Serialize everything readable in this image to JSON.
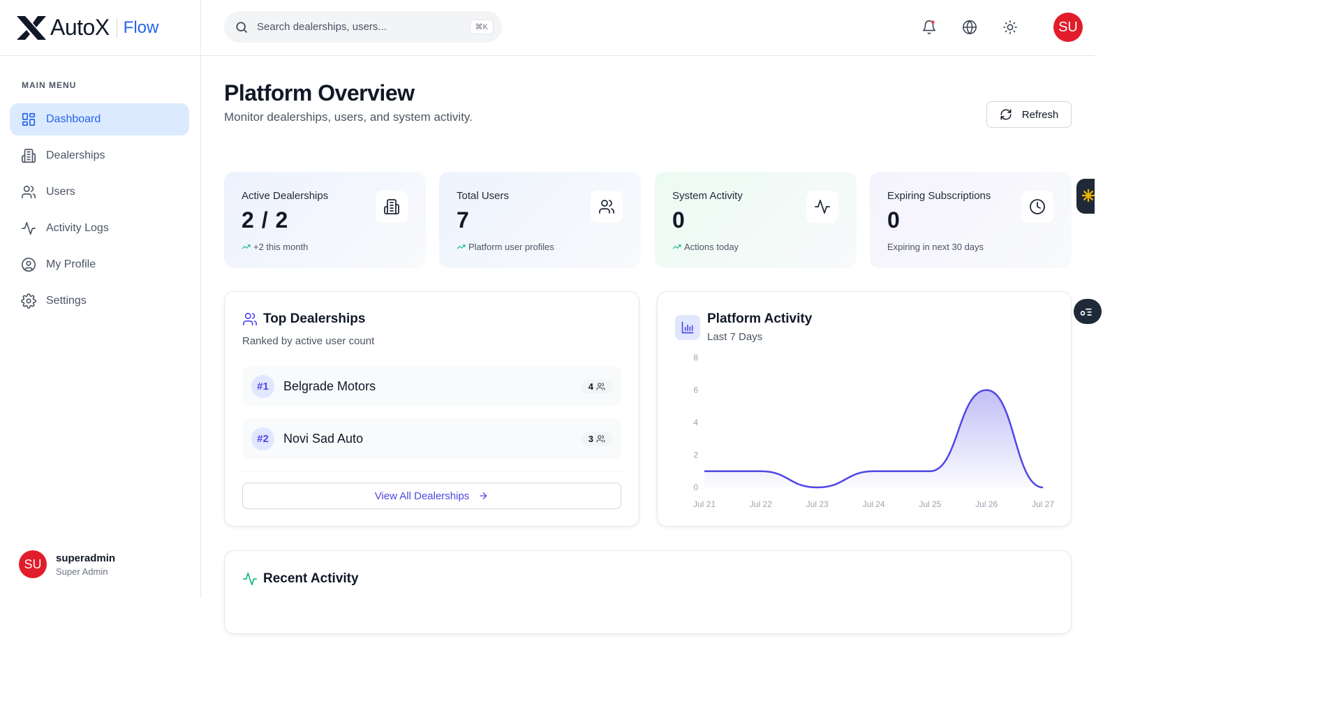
{
  "brand": {
    "name": "AutoX",
    "product": "Flow"
  },
  "sidebar": {
    "menu_title": "MAIN MENU",
    "items": [
      {
        "label": "Dashboard",
        "icon": "dashboard-icon",
        "active": true
      },
      {
        "label": "Dealerships",
        "icon": "building-icon"
      },
      {
        "label": "Users",
        "icon": "users-icon"
      },
      {
        "label": "Activity Logs",
        "icon": "activity-icon"
      },
      {
        "label": "My Profile",
        "icon": "profile-icon"
      },
      {
        "label": "Settings",
        "icon": "gear-icon"
      }
    ],
    "user": {
      "initials": "SU",
      "name": "superadmin",
      "role": "Super Admin"
    }
  },
  "header": {
    "search_placeholder": "Search dealerships, users...",
    "shortcut": "⌘K",
    "avatar_initials": "SU"
  },
  "page": {
    "title": "Platform Overview",
    "subtitle": "Monitor dealerships, users, and system activity.",
    "refresh_label": "Refresh"
  },
  "stats": [
    {
      "label": "Active Dealerships",
      "value": "2 / 2",
      "foot": "+2 this month",
      "trend": true,
      "icon": "building-icon",
      "bg": "#eef2fe"
    },
    {
      "label": "Total Users",
      "value": "7",
      "foot": "Platform user profiles",
      "trend": true,
      "icon": "users-icon",
      "bg": "#eef3fd"
    },
    {
      "label": "System Activity",
      "value": "0",
      "foot": "Actions today",
      "trend": true,
      "icon": "activity-icon",
      "bg": "#ecfbf2"
    },
    {
      "label": "Expiring Subscriptions",
      "value": "0",
      "foot": "Expiring in next 30 days",
      "trend": false,
      "icon": "clock-icon",
      "bg": "#f5f3fd"
    }
  ],
  "top_dealerships": {
    "title": "Top Dealerships",
    "subtitle": "Ranked by active user count",
    "rows": [
      {
        "rank": "#1",
        "name": "Belgrade Motors",
        "count": "4"
      },
      {
        "rank": "#2",
        "name": "Novi Sad Auto",
        "count": "3"
      }
    ],
    "view_all": "View All Dealerships"
  },
  "platform_activity": {
    "title": "Platform Activity",
    "subtitle": "Last 7 Days"
  },
  "chart_data": {
    "type": "area",
    "x": [
      "Jul 21",
      "Jul 22",
      "Jul 23",
      "Jul 24",
      "Jul 25",
      "Jul 26",
      "Jul 27"
    ],
    "values": [
      1,
      1,
      0,
      1,
      1,
      6,
      0
    ],
    "yticks": [
      0,
      2,
      4,
      6,
      8
    ],
    "ylim": [
      0,
      8
    ],
    "color": "#4f46e5"
  },
  "recent_activity": {
    "title": "Recent Activity"
  }
}
